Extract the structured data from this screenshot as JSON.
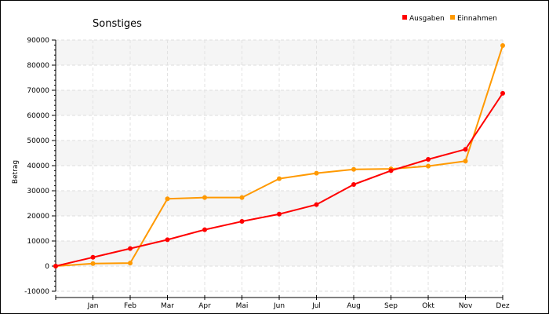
{
  "chart_data": {
    "type": "line",
    "title": "Sonstiges",
    "ylabel": "Betrag",
    "xlabel": "",
    "categories": [
      "",
      "Jan",
      "Feb",
      "Mar",
      "Apr",
      "Mai",
      "Jun",
      "Jul",
      "Aug",
      "Sep",
      "Okt",
      "Nov",
      "Dez"
    ],
    "ylim": [
      -10000,
      90000
    ],
    "yticks": [
      -10000,
      0,
      10000,
      20000,
      30000,
      40000,
      50000,
      60000,
      70000,
      80000,
      90000
    ],
    "grid": true,
    "legend_position": "top-right",
    "series": [
      {
        "name": "Ausgaben",
        "color": "#ff0000",
        "values": [
          0,
          3500,
          7000,
          10500,
          14500,
          17800,
          20700,
          24500,
          32500,
          38000,
          42500,
          46500,
          68800
        ]
      },
      {
        "name": "Einnahmen",
        "color": "#ff9900",
        "values": [
          0,
          1000,
          1200,
          26800,
          27300,
          27300,
          34800,
          37000,
          38500,
          38700,
          39800,
          41800,
          87800
        ]
      }
    ]
  }
}
